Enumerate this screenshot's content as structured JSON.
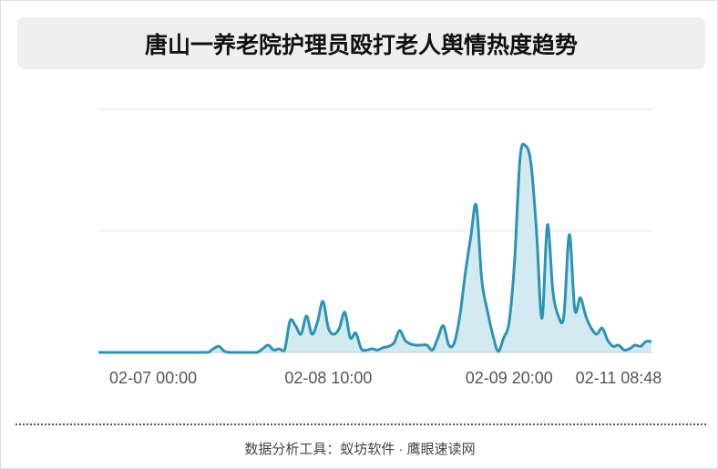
{
  "chart_data": {
    "type": "area",
    "title": "唐山一养老院护理员殴打老人舆情热度趋势",
    "footer": "数据分析工具：蚁坊软件 · 鹰眼速读网",
    "categories": [
      null,
      null,
      null,
      null,
      null,
      null,
      null,
      null,
      null,
      null,
      "02-07 00:00",
      null,
      null,
      null,
      null,
      null,
      null,
      null,
      null,
      null,
      null,
      null,
      null,
      null,
      null,
      null,
      null,
      null,
      null,
      null,
      null,
      null,
      null,
      null,
      null,
      null,
      null,
      null,
      null,
      null,
      null,
      null,
      "02-08 10:00",
      null,
      null,
      null,
      null,
      null,
      null,
      null,
      null,
      null,
      null,
      null,
      null,
      null,
      null,
      null,
      null,
      null,
      null,
      null,
      null,
      null,
      null,
      null,
      null,
      null,
      null,
      null,
      null,
      null,
      null,
      null,
      null,
      "02-09 20:00",
      null,
      null,
      null,
      null,
      null,
      null,
      null,
      null,
      null,
      null,
      null,
      null,
      null,
      null,
      null,
      null,
      null,
      null,
      null,
      "02-11 08:48",
      null,
      null,
      null,
      null,
      null,
      null
    ],
    "values": [
      0,
      0,
      0,
      0,
      0,
      0,
      0,
      0,
      0,
      0,
      0,
      0,
      0,
      0,
      0,
      0,
      0,
      0,
      0,
      0,
      0,
      0.03,
      0.05,
      0.01,
      0,
      0,
      0,
      0,
      0,
      0,
      0.03,
      0.06,
      0.02,
      0.03,
      0.02,
      0.26,
      0.22,
      0.15,
      0.3,
      0.15,
      0.25,
      0.42,
      0.2,
      0.15,
      0.2,
      0.33,
      0.12,
      0.16,
      0.03,
      0.02,
      0.03,
      0.02,
      0.04,
      0.05,
      0.08,
      0.18,
      0.1,
      0.07,
      0.06,
      0.06,
      0.06,
      0.02,
      0.12,
      0.22,
      0.06,
      0.08,
      0.3,
      0.65,
      0.95,
      1.21,
      0.6,
      0.35,
      0.15,
      0.01,
      0.12,
      0.25,
      0.75,
      1.6,
      1.7,
      1.55,
      1.0,
      0.28,
      1.05,
      0.5,
      0.3,
      0.3,
      0.97,
      0.35,
      0.45,
      0.3,
      0.2,
      0.15,
      0.2,
      0.1,
      0.05,
      0.06,
      0.02,
      0.03,
      0.06,
      0.05,
      0.09,
      0.09
    ],
    "color": "#2b93b4",
    "fill": "#d3eaf1",
    "ylim": [
      0,
      2
    ],
    "yticks": [
      0,
      1,
      2
    ],
    "grid": true
  }
}
